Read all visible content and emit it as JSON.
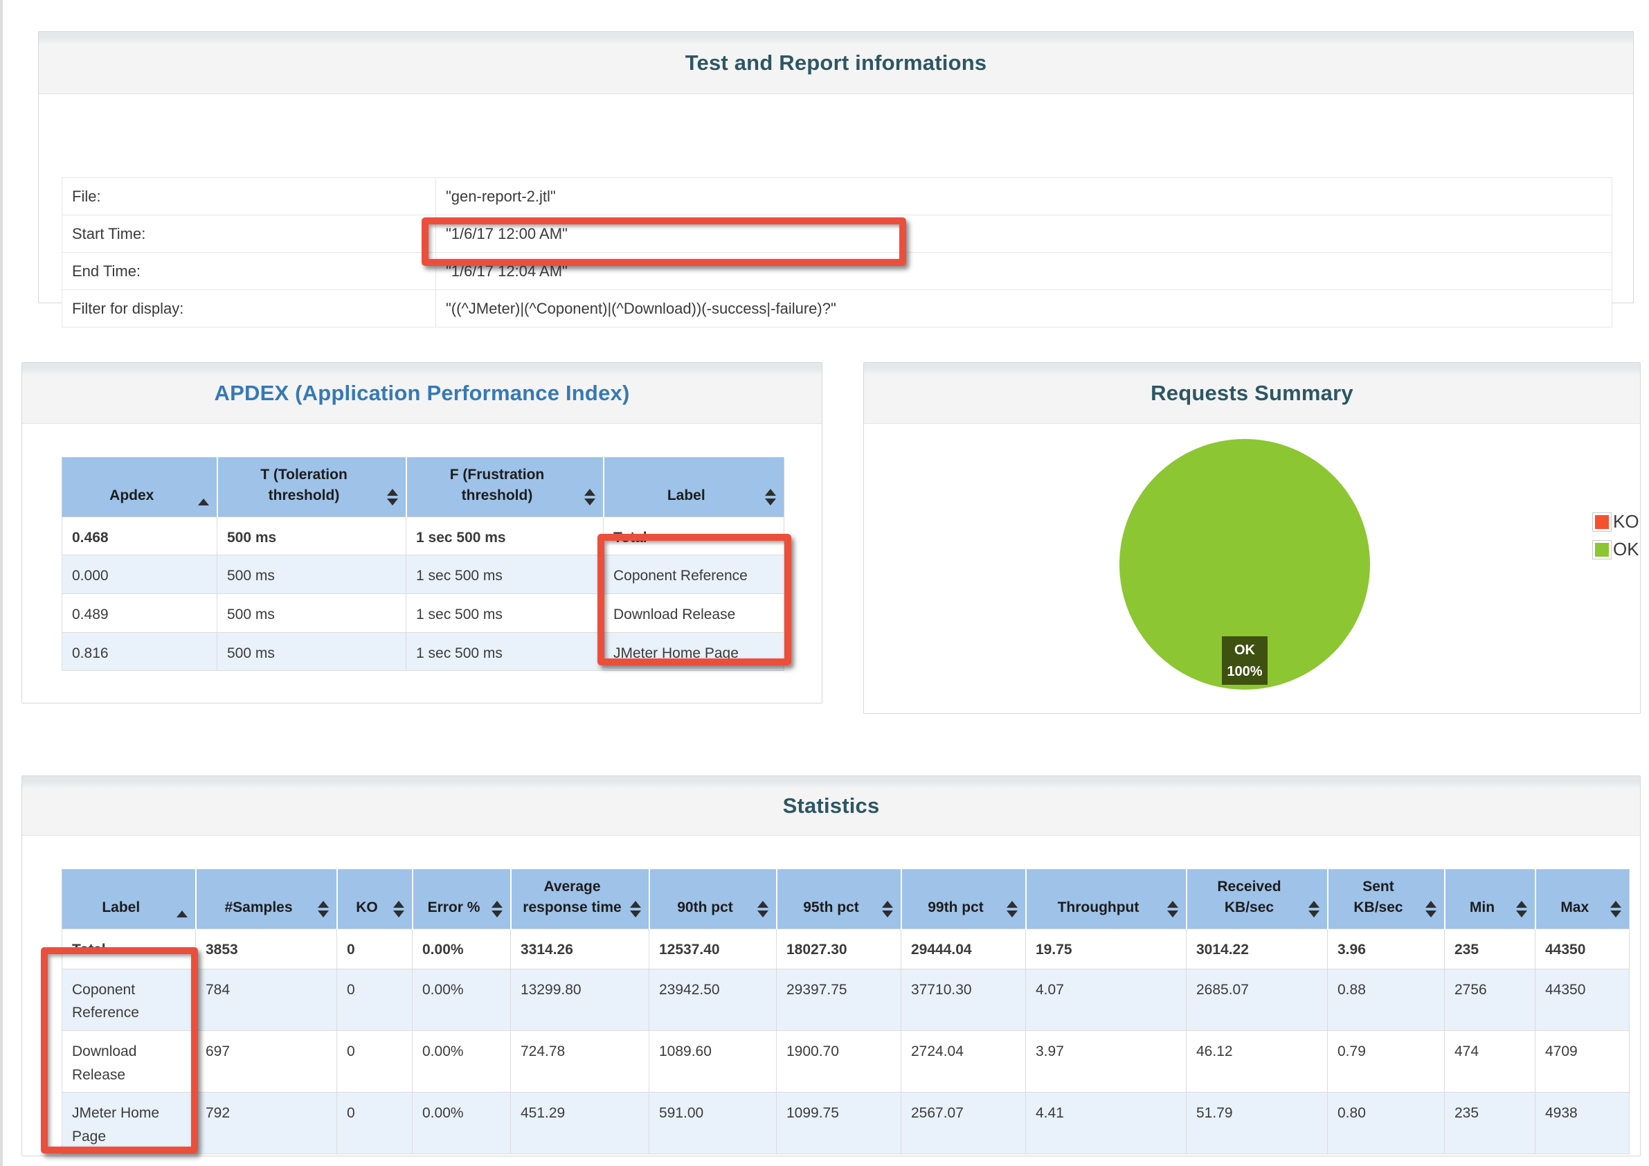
{
  "info_panel": {
    "title": "Test and Report informations",
    "rows": [
      {
        "label": "File:",
        "value": "\"gen-report-2.jtl\""
      },
      {
        "label": "Start Time:",
        "value": "\"1/6/17 12:00 AM\""
      },
      {
        "label": "End Time:",
        "value": "\"1/6/17 12:04 AM\""
      },
      {
        "label": "Filter for display:",
        "value": "\"((^JMeter)|(^Coponent)|(^Download))(-success|-failure)?\""
      }
    ]
  },
  "apdex_panel": {
    "title": "APDEX (Application Performance Index)",
    "columns": [
      {
        "label": "Apdex",
        "sort": "asc"
      },
      {
        "label": "T (Toleration threshold)",
        "sort": "both"
      },
      {
        "label": "F (Frustration threshold)",
        "sort": "both"
      },
      {
        "label": "Label",
        "sort": "both"
      }
    ],
    "rows": [
      [
        "0.468",
        "500 ms",
        "1 sec 500 ms",
        "Total"
      ],
      [
        "0.000",
        "500 ms",
        "1 sec 500 ms",
        "Coponent Reference"
      ],
      [
        "0.489",
        "500 ms",
        "1 sec 500 ms",
        "Download Release"
      ],
      [
        "0.816",
        "500 ms",
        "1 sec 500 ms",
        "JMeter Home Page"
      ]
    ]
  },
  "requests_panel": {
    "title": "Requests Summary",
    "legend": [
      {
        "label": "KO",
        "color": "#f4512f"
      },
      {
        "label": "OK",
        "color": "#8cc633"
      }
    ],
    "pie_label_line1": "OK",
    "pie_label_line2": "100%",
    "pie_label_bg": "#3e5110",
    "ok_color": "#8cc633",
    "chart_data": {
      "type": "pie",
      "title": "Requests Summary",
      "categories": [
        "KO",
        "OK"
      ],
      "values": [
        0,
        100
      ],
      "colors": [
        "#f4512f",
        "#8cc633"
      ],
      "legend_position": "right",
      "annotation": "OK 100%"
    }
  },
  "statistics_panel": {
    "title": "Statistics",
    "columns": [
      {
        "label": "Label",
        "sort": "asc"
      },
      {
        "label": "#Samples",
        "sort": "both"
      },
      {
        "label": "KO",
        "sort": "both"
      },
      {
        "label": "Error %",
        "sort": "both"
      },
      {
        "label": "Average response time",
        "sort": "both"
      },
      {
        "label": "90th pct",
        "sort": "both"
      },
      {
        "label": "95th pct",
        "sort": "both"
      },
      {
        "label": "99th pct",
        "sort": "both"
      },
      {
        "label": "Throughput",
        "sort": "both"
      },
      {
        "label": "Received KB/sec",
        "sort": "both"
      },
      {
        "label": "Sent KB/sec",
        "sort": "both"
      },
      {
        "label": "Min",
        "sort": "both"
      },
      {
        "label": "Max",
        "sort": "both"
      }
    ],
    "rows": [
      [
        "Total",
        "3853",
        "0",
        "0.00%",
        "3314.26",
        "12537.40",
        "18027.30",
        "29444.04",
        "19.75",
        "3014.22",
        "3.96",
        "235",
        "44350"
      ],
      [
        "Coponent Reference",
        "784",
        "0",
        "0.00%",
        "13299.80",
        "23942.50",
        "29397.75",
        "37710.30",
        "4.07",
        "2685.07",
        "0.88",
        "2756",
        "44350"
      ],
      [
        "Download Release",
        "697",
        "0",
        "0.00%",
        "724.78",
        "1089.60",
        "1900.70",
        "2724.04",
        "3.97",
        "46.12",
        "0.79",
        "474",
        "4709"
      ],
      [
        "JMeter Home Page",
        "792",
        "0",
        "0.00%",
        "451.29",
        "591.00",
        "1099.75",
        "2567.07",
        "4.41",
        "51.79",
        "0.80",
        "235",
        "4938"
      ]
    ]
  }
}
